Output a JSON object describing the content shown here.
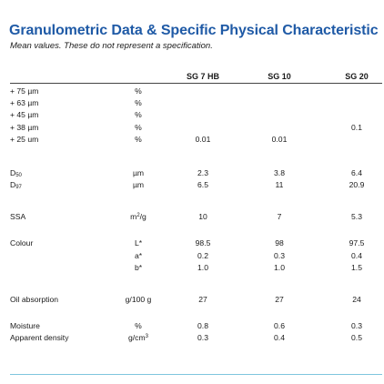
{
  "title": "Granulometric Data & Specific Physical Characteristic",
  "subtitle": "Mean values. These do not represent a specification.",
  "columns": [
    "SG 7 HB",
    "SG 10",
    "SG 20"
  ],
  "rows": [
    {
      "label": "+ 75 µm",
      "unit": "%",
      "values": [
        "",
        "",
        ""
      ]
    },
    {
      "label": "+ 63 µm",
      "unit": "%",
      "values": [
        "",
        "",
        ""
      ]
    },
    {
      "label": "+ 45 µm",
      "unit": "%",
      "values": [
        "",
        "",
        ""
      ]
    },
    {
      "label": "+ 38 µm",
      "unit": "%",
      "values": [
        "",
        "",
        "0.1"
      ]
    },
    {
      "label": "+ 25 um",
      "unit": "%",
      "values": [
        "0.01",
        "0.01",
        ""
      ]
    },
    {
      "label": "D",
      "label_sub": "50",
      "unit": "µm",
      "values": [
        "2.3",
        "3.8",
        "6.4"
      ]
    },
    {
      "label": "D",
      "label_sub": "97",
      "unit": "µm",
      "values": [
        "6.5",
        "11",
        "20.9"
      ]
    },
    {
      "label": "SSA",
      "unit": "m",
      "unit_sup": "2",
      "unit_rest": "/g",
      "values": [
        "10",
        "7",
        "5.3"
      ]
    },
    {
      "label": "Colour",
      "unit": "L*",
      "values": [
        "98.5",
        "98",
        "97.5"
      ]
    },
    {
      "label": "",
      "unit": "a*",
      "values": [
        "0.2",
        "0.3",
        "0.4"
      ]
    },
    {
      "label": "",
      "unit": "b*",
      "values": [
        "1.0",
        "1.0",
        "1.5"
      ]
    },
    {
      "label": "Oil absorption",
      "unit": "g/100 g",
      "values": [
        "27",
        "27",
        "24"
      ]
    },
    {
      "label": "Moisture",
      "unit": "%",
      "values": [
        "0.8",
        "0.6",
        "0.3"
      ]
    },
    {
      "label": "Apparent density",
      "unit": "g/cm",
      "unit_sup": "3",
      "values": [
        "0.3",
        "0.4",
        "0.5"
      ]
    }
  ]
}
